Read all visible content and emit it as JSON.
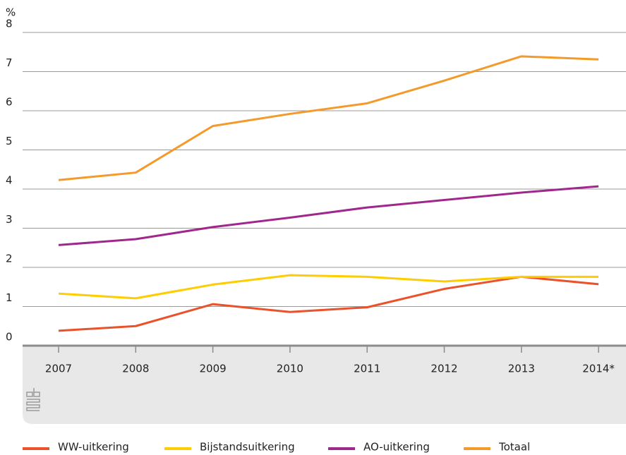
{
  "chart_data": {
    "type": "line",
    "y_label": "%",
    "categories": [
      "2007",
      "2008",
      "2009",
      "2010",
      "2011",
      "2012",
      "2013",
      "2014*"
    ],
    "series": [
      {
        "name": "WW-uitkering",
        "color": "#e9522a",
        "values": [
          0.38,
          0.5,
          1.06,
          0.86,
          0.98,
          1.45,
          1.76,
          1.57
        ]
      },
      {
        "name": "Bijstandsuitkering",
        "color": "#ffcc00",
        "values": [
          1.33,
          1.21,
          1.56,
          1.8,
          1.76,
          1.64,
          1.76,
          1.76
        ]
      },
      {
        "name": "AO-uitkering",
        "color": "#a0288c",
        "values": [
          2.57,
          2.72,
          3.03,
          3.27,
          3.53,
          3.72,
          3.91,
          4.07
        ]
      },
      {
        "name": "Totaal",
        "color": "#f39a2b",
        "values": [
          4.23,
          4.42,
          5.61,
          5.92,
          6.19,
          6.77,
          7.39,
          7.31
        ]
      }
    ],
    "ylim": [
      0,
      8
    ],
    "yticks": [
      0,
      1,
      2,
      3,
      4,
      5,
      6,
      7,
      8
    ],
    "grid": true
  }
}
